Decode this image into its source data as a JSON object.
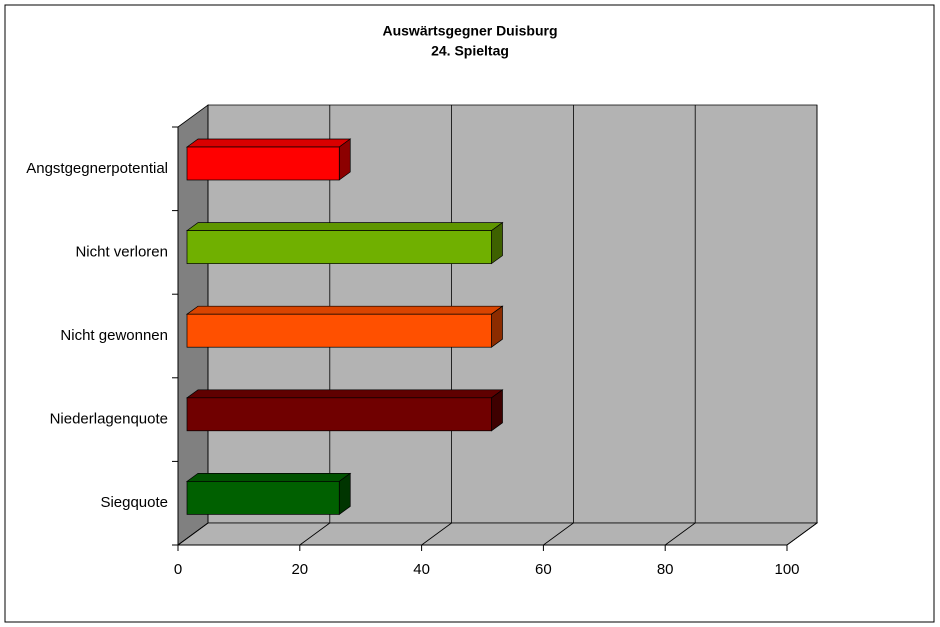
{
  "chart_data": {
    "type": "bar3d",
    "title": "Auswärtsgegner Duisburg",
    "subtitle": "24. Spieltag",
    "categories": [
      "Angstgegnerpotential",
      "Nicht verloren",
      "Nicht gewonnen",
      "Niederlagenquote",
      "Siegquote"
    ],
    "values": [
      25,
      50,
      50,
      50,
      25
    ],
    "colors": [
      "#ff0000",
      "#70b000",
      "#ff5000",
      "#700000",
      "#006000"
    ],
    "xlim": [
      0,
      100
    ],
    "xticks": [
      0,
      20,
      40,
      60,
      80,
      100
    ],
    "grid": true
  }
}
